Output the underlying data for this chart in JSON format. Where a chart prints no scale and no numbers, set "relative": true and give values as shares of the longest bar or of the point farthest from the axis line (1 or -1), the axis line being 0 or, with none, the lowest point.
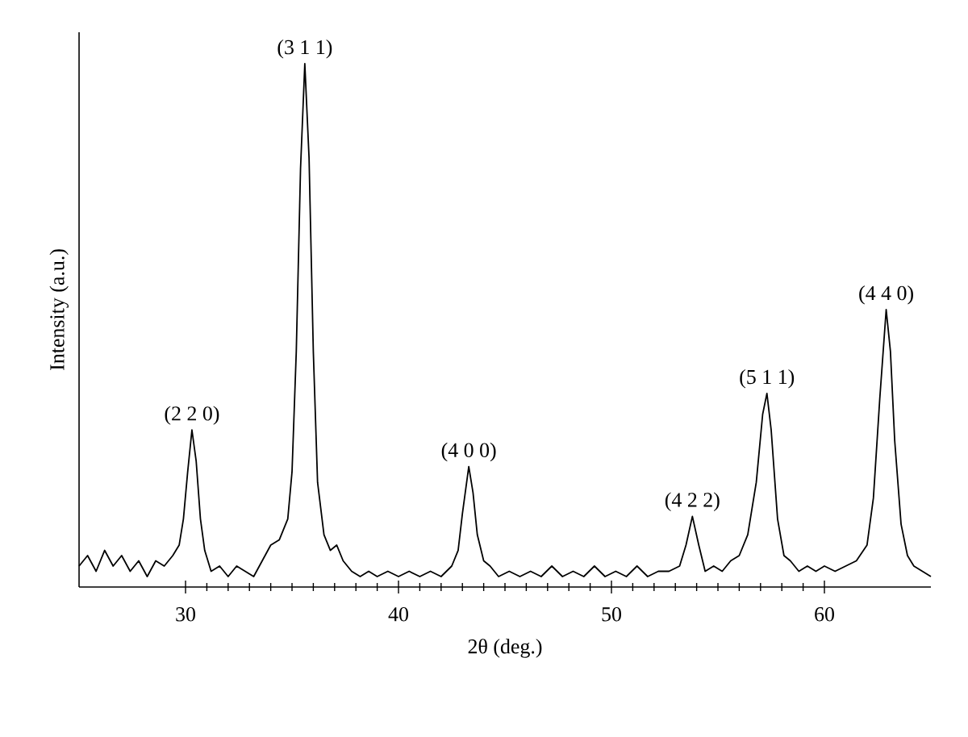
{
  "chart_data": {
    "type": "line",
    "relative": true,
    "xlabel": "2θ (deg.)",
    "ylabel": "Intensity (a.u.)",
    "xlim": [
      25,
      65
    ],
    "xticks": [
      30,
      40,
      50,
      60
    ],
    "grid": false,
    "marker": "none",
    "line_style": "solid",
    "series": [
      {
        "color": "#000000",
        "x": [
          25.0,
          25.4,
          25.8,
          26.2,
          26.6,
          27.0,
          27.4,
          27.8,
          28.2,
          28.6,
          29.0,
          29.4,
          29.7,
          29.9,
          30.1,
          30.3,
          30.5,
          30.7,
          30.9,
          31.2,
          31.6,
          32.0,
          32.4,
          32.8,
          33.2,
          33.6,
          34.0,
          34.4,
          34.8,
          35.0,
          35.2,
          35.4,
          35.6,
          35.8,
          36.0,
          36.2,
          36.5,
          36.8,
          37.1,
          37.4,
          37.8,
          38.2,
          38.6,
          39.0,
          39.5,
          40.0,
          40.5,
          41.0,
          41.5,
          42.0,
          42.5,
          42.8,
          43.0,
          43.3,
          43.5,
          43.7,
          44.0,
          44.3,
          44.7,
          45.2,
          45.7,
          46.2,
          46.7,
          47.2,
          47.7,
          48.2,
          48.7,
          49.2,
          49.7,
          50.2,
          50.7,
          51.2,
          51.7,
          52.2,
          52.7,
          53.2,
          53.5,
          53.8,
          54.1,
          54.4,
          54.8,
          55.2,
          55.6,
          56.0,
          56.4,
          56.8,
          57.1,
          57.3,
          57.5,
          57.8,
          58.1,
          58.4,
          58.8,
          59.2,
          59.6,
          60.0,
          60.5,
          61.0,
          61.5,
          62.0,
          62.3,
          62.6,
          62.9,
          63.1,
          63.3,
          63.6,
          63.9,
          64.2,
          64.6,
          65.0
        ],
        "values": [
          0.04,
          0.06,
          0.03,
          0.07,
          0.04,
          0.06,
          0.03,
          0.05,
          0.02,
          0.05,
          0.04,
          0.06,
          0.08,
          0.13,
          0.22,
          0.3,
          0.24,
          0.13,
          0.07,
          0.03,
          0.04,
          0.02,
          0.04,
          0.03,
          0.02,
          0.05,
          0.08,
          0.09,
          0.13,
          0.22,
          0.45,
          0.8,
          1.0,
          0.82,
          0.45,
          0.2,
          0.1,
          0.07,
          0.08,
          0.05,
          0.03,
          0.02,
          0.03,
          0.02,
          0.03,
          0.02,
          0.03,
          0.02,
          0.03,
          0.02,
          0.04,
          0.07,
          0.14,
          0.23,
          0.18,
          0.1,
          0.05,
          0.04,
          0.02,
          0.03,
          0.02,
          0.03,
          0.02,
          0.04,
          0.02,
          0.03,
          0.02,
          0.04,
          0.02,
          0.03,
          0.02,
          0.04,
          0.02,
          0.03,
          0.03,
          0.04,
          0.08,
          0.135,
          0.08,
          0.03,
          0.04,
          0.03,
          0.05,
          0.06,
          0.1,
          0.2,
          0.33,
          0.37,
          0.3,
          0.13,
          0.06,
          0.05,
          0.03,
          0.04,
          0.03,
          0.04,
          0.03,
          0.04,
          0.05,
          0.08,
          0.17,
          0.36,
          0.53,
          0.45,
          0.28,
          0.12,
          0.06,
          0.04,
          0.03,
          0.02
        ]
      }
    ],
    "annotations": [
      {
        "text": "(2 2 0)",
        "x": 30.3,
        "y": 0.3
      },
      {
        "text": "(3 1 1)",
        "x": 35.6,
        "y": 1.0
      },
      {
        "text": "(4 0 0)",
        "x": 43.3,
        "y": 0.23
      },
      {
        "text": "(4 2 2)",
        "x": 53.8,
        "y": 0.135
      },
      {
        "text": "(5 1 1)",
        "x": 57.3,
        "y": 0.37
      },
      {
        "text": "(4 4 0)",
        "x": 62.9,
        "y": 0.53
      }
    ]
  }
}
